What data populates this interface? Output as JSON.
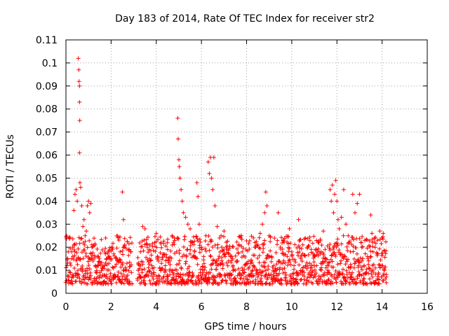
{
  "chart_data": {
    "type": "scatter",
    "title": "Day 183 of 2014, Rate Of TEC Index for receiver str2",
    "xlabel": "GPS time / hours",
    "ylabel": "ROTI / TECUs",
    "xlim": [
      0,
      16
    ],
    "ylim": [
      0,
      0.11
    ],
    "xticks": [
      0,
      2,
      4,
      6,
      8,
      10,
      12,
      14,
      16
    ],
    "xtick_labels": [
      "0",
      "2",
      "4",
      "6",
      "8",
      "10",
      "12",
      "14",
      "16"
    ],
    "yticks": [
      0,
      0.01,
      0.02,
      0.03,
      0.04,
      0.05,
      0.06,
      0.07,
      0.08,
      0.09,
      0.1,
      0.11
    ],
    "ytick_labels": [
      "0",
      "0.01",
      "0.02",
      "0.03",
      "0.04",
      "0.05",
      "0.06",
      "0.07",
      "0.08",
      "0.09",
      "0.1",
      "0.11"
    ],
    "grid": true,
    "marker": "+",
    "series": [
      {
        "name": "ROTI",
        "color": "#ff0000",
        "points": [
          [
            0.05,
            0.012
          ],
          [
            0.1,
            0.018
          ],
          [
            0.15,
            0.024
          ],
          [
            0.2,
            0.009
          ],
          [
            0.25,
            0.015
          ],
          [
            0.3,
            0.02
          ],
          [
            0.35,
            0.036
          ],
          [
            0.4,
            0.043
          ],
          [
            0.45,
            0.045
          ],
          [
            0.5,
            0.04
          ],
          [
            0.55,
            0.102
          ],
          [
            0.57,
            0.097
          ],
          [
            0.58,
            0.092
          ],
          [
            0.6,
            0.09
          ],
          [
            0.6,
            0.083
          ],
          [
            0.61,
            0.075
          ],
          [
            0.6,
            0.061
          ],
          [
            0.62,
            0.048
          ],
          [
            0.65,
            0.046
          ],
          [
            0.7,
            0.038
          ],
          [
            0.75,
            0.029
          ],
          [
            0.8,
            0.032
          ],
          [
            0.85,
            0.025
          ],
          [
            0.9,
            0.027
          ],
          [
            0.95,
            0.038
          ],
          [
            1.0,
            0.04
          ],
          [
            1.05,
            0.035
          ],
          [
            1.1,
            0.039
          ],
          [
            1.15,
            0.02
          ],
          [
            1.2,
            0.014
          ],
          [
            1.3,
            0.012
          ],
          [
            1.4,
            0.016
          ],
          [
            1.5,
            0.009
          ],
          [
            1.6,
            0.011
          ],
          [
            1.7,
            0.005
          ],
          [
            1.8,
            0.008
          ],
          [
            1.9,
            0.013
          ],
          [
            2.0,
            0.015
          ],
          [
            2.1,
            0.011
          ],
          [
            2.2,
            0.007
          ],
          [
            2.3,
            0.014
          ],
          [
            2.4,
            0.018
          ],
          [
            2.5,
            0.044
          ],
          [
            2.55,
            0.032
          ],
          [
            2.6,
            0.021
          ],
          [
            2.7,
            0.013
          ],
          [
            2.8,
            0.019
          ],
          [
            2.9,
            0.009
          ],
          [
            3.2,
            0.01
          ],
          [
            3.3,
            0.018
          ],
          [
            3.4,
            0.029
          ],
          [
            3.5,
            0.028
          ],
          [
            3.6,
            0.02
          ],
          [
            3.7,
            0.015
          ],
          [
            3.8,
            0.012
          ],
          [
            3.9,
            0.009
          ],
          [
            4.0,
            0.026
          ],
          [
            4.1,
            0.014
          ],
          [
            4.2,
            0.022
          ],
          [
            4.3,
            0.017
          ],
          [
            4.4,
            0.012
          ],
          [
            4.5,
            0.019
          ],
          [
            4.6,
            0.014
          ],
          [
            4.7,
            0.025
          ],
          [
            4.8,
            0.024
          ],
          [
            4.9,
            0.018
          ],
          [
            4.95,
            0.076
          ],
          [
            4.97,
            0.067
          ],
          [
            5.0,
            0.058
          ],
          [
            5.02,
            0.055
          ],
          [
            5.05,
            0.05
          ],
          [
            5.1,
            0.045
          ],
          [
            5.15,
            0.04
          ],
          [
            5.2,
            0.035
          ],
          [
            5.3,
            0.033
          ],
          [
            5.4,
            0.03
          ],
          [
            5.5,
            0.028
          ],
          [
            5.6,
            0.022
          ],
          [
            5.7,
            0.018
          ],
          [
            5.8,
            0.048
          ],
          [
            5.85,
            0.042
          ],
          [
            5.9,
            0.03
          ],
          [
            6.0,
            0.02
          ],
          [
            6.1,
            0.016
          ],
          [
            6.2,
            0.025
          ],
          [
            6.3,
            0.057
          ],
          [
            6.35,
            0.052
          ],
          [
            6.4,
            0.059
          ],
          [
            6.45,
            0.05
          ],
          [
            6.5,
            0.045
          ],
          [
            6.55,
            0.059
          ],
          [
            6.6,
            0.038
          ],
          [
            6.7,
            0.029
          ],
          [
            6.8,
            0.024
          ],
          [
            6.9,
            0.02
          ],
          [
            7.0,
            0.027
          ],
          [
            7.1,
            0.02
          ],
          [
            7.2,
            0.014
          ],
          [
            7.3,
            0.016
          ],
          [
            7.4,
            0.012
          ],
          [
            7.5,
            0.01
          ],
          [
            7.6,
            0.014
          ],
          [
            7.7,
            0.008
          ],
          [
            7.8,
            0.011
          ],
          [
            7.9,
            0.009
          ],
          [
            8.0,
            0.013
          ],
          [
            8.1,
            0.008
          ],
          [
            8.2,
            0.014
          ],
          [
            8.3,
            0.012
          ],
          [
            8.4,
            0.02
          ],
          [
            8.5,
            0.021
          ],
          [
            8.6,
            0.026
          ],
          [
            8.7,
            0.03
          ],
          [
            8.8,
            0.035
          ],
          [
            8.85,
            0.044
          ],
          [
            8.9,
            0.038
          ],
          [
            9.0,
            0.025
          ],
          [
            9.1,
            0.016
          ],
          [
            9.2,
            0.012
          ],
          [
            9.3,
            0.01
          ],
          [
            9.4,
            0.035
          ],
          [
            9.5,
            0.02
          ],
          [
            9.6,
            0.013
          ],
          [
            9.7,
            0.009
          ],
          [
            9.8,
            0.016
          ],
          [
            9.9,
            0.028
          ],
          [
            10.0,
            0.018
          ],
          [
            10.1,
            0.012
          ],
          [
            10.2,
            0.009
          ],
          [
            10.3,
            0.032
          ],
          [
            10.4,
            0.015
          ],
          [
            10.5,
            0.011
          ],
          [
            10.6,
            0.024
          ],
          [
            10.7,
            0.02
          ],
          [
            10.8,
            0.013
          ],
          [
            10.9,
            0.009
          ],
          [
            11.0,
            0.016
          ],
          [
            11.1,
            0.012
          ],
          [
            11.2,
            0.022
          ],
          [
            11.3,
            0.018
          ],
          [
            11.4,
            0.027
          ],
          [
            11.5,
            0.015
          ],
          [
            11.6,
            0.01
          ],
          [
            11.7,
            0.045
          ],
          [
            11.75,
            0.04
          ],
          [
            11.8,
            0.047
          ],
          [
            11.85,
            0.035
          ],
          [
            11.9,
            0.043
          ],
          [
            11.95,
            0.049
          ],
          [
            12.0,
            0.04
          ],
          [
            12.05,
            0.032
          ],
          [
            12.1,
            0.028
          ],
          [
            12.2,
            0.033
          ],
          [
            12.3,
            0.045
          ],
          [
            12.4,
            0.03
          ],
          [
            12.5,
            0.025
          ],
          [
            12.6,
            0.018
          ],
          [
            12.7,
            0.043
          ],
          [
            12.8,
            0.035
          ],
          [
            12.9,
            0.039
          ],
          [
            13.0,
            0.043
          ],
          [
            13.1,
            0.02
          ],
          [
            13.2,
            0.012
          ],
          [
            13.5,
            0.034
          ],
          [
            13.55,
            0.026
          ],
          [
            13.6,
            0.018
          ],
          [
            13.7,
            0.011
          ],
          [
            13.8,
            0.023
          ],
          [
            13.9,
            0.027
          ],
          [
            14.0,
            0.024
          ],
          [
            14.05,
            0.026
          ],
          [
            14.1,
            0.01
          ]
        ]
      }
    ],
    "background_band": {
      "segments": [
        [
          0.0,
          2.92
        ],
        [
          3.18,
          14.2
        ]
      ],
      "y_min": 0.004,
      "y_max": 0.025
    }
  }
}
